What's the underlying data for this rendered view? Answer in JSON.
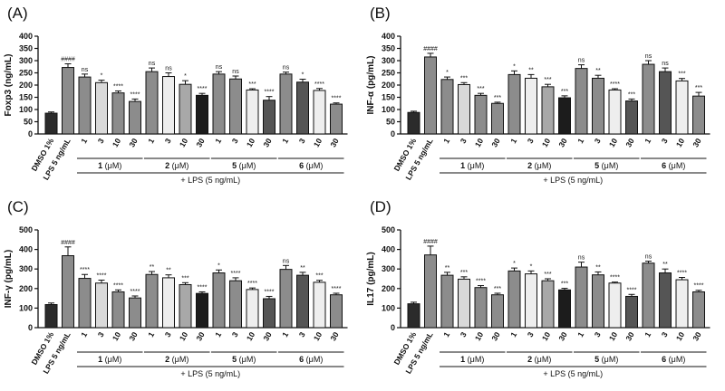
{
  "shared": {
    "categories": [
      "DMSO 1%",
      "LPS 5 ng/mL",
      "1",
      "3",
      "10",
      "30",
      "1",
      "3",
      "10",
      "30",
      "1",
      "3",
      "10",
      "30",
      "1",
      "3",
      "10",
      "30"
    ],
    "groups": [
      {
        "name": "1",
        "unit": "(μM)"
      },
      {
        "name": "2",
        "unit": "(μM)"
      },
      {
        "name": "5",
        "unit": "(μM)"
      },
      {
        "name": "6",
        "unit": "(μM)"
      }
    ],
    "lps_label": "+ LPS (5 ng/mL)",
    "bar_colors": [
      "#2b2b2b",
      "#8c8c8c",
      "#8c8c8c",
      "#d9d9d9",
      "#8c8c8c",
      "#8c8c8c",
      "#8c8c8c",
      "#eeeeee",
      "#a8a8a8",
      "#1c1c1c",
      "#8c8c8c",
      "#8c8c8c",
      "#eeeeee",
      "#555555",
      "#8c8c8c",
      "#555555",
      "#eeeeee",
      "#8c8c8c"
    ]
  },
  "chart_data": [
    {
      "panel": "(A)",
      "type": "bar",
      "ylabel": "Foxp3 (ng/mL)",
      "ylim": [
        0,
        400
      ],
      "yticks": [
        0,
        50,
        100,
        150,
        200,
        250,
        300,
        350,
        400
      ],
      "values": [
        85,
        272,
        233,
        210,
        168,
        133,
        255,
        235,
        203,
        158,
        245,
        225,
        180,
        138,
        245,
        212,
        178,
        122
      ],
      "errors": [
        5,
        15,
        12,
        10,
        8,
        10,
        15,
        15,
        15,
        8,
        10,
        12,
        5,
        15,
        8,
        12,
        8,
        5
      ],
      "significance": [
        "",
        "####",
        "ns",
        "*",
        "****",
        "****",
        "ns",
        "ns",
        "*",
        "****",
        "ns",
        "ns",
        "***",
        "****",
        "ns",
        "*",
        "****",
        "****"
      ]
    },
    {
      "panel": "(B)",
      "type": "bar",
      "ylabel": "INF-α (pg/mL)",
      "ylim": [
        0,
        400
      ],
      "yticks": [
        0,
        50,
        100,
        150,
        200,
        250,
        300,
        350,
        400
      ],
      "values": [
        88,
        315,
        223,
        202,
        158,
        125,
        243,
        228,
        193,
        148,
        268,
        228,
        180,
        135,
        285,
        255,
        217,
        155
      ],
      "errors": [
        5,
        15,
        10,
        8,
        8,
        5,
        15,
        15,
        10,
        8,
        15,
        12,
        5,
        8,
        15,
        15,
        10,
        15
      ],
      "significance": [
        "",
        "####",
        "*",
        "***",
        "***",
        "***",
        "*",
        "**",
        "***",
        "***",
        "ns",
        "**",
        "****",
        "***",
        "ns",
        "ns",
        "***",
        "***"
      ]
    },
    {
      "panel": "(C)",
      "type": "bar",
      "ylabel": "INF-γ (pg/mL)",
      "ylim": [
        0,
        500
      ],
      "yticks": [
        0,
        100,
        200,
        300,
        400,
        500
      ],
      "values": [
        118,
        368,
        252,
        228,
        183,
        152,
        272,
        255,
        220,
        175,
        280,
        240,
        195,
        148,
        298,
        268,
        232,
        168
      ],
      "errors": [
        8,
        45,
        20,
        15,
        10,
        10,
        15,
        15,
        10,
        8,
        15,
        15,
        8,
        12,
        20,
        15,
        10,
        8
      ],
      "significance": [
        "",
        "####",
        "****",
        "****",
        "****",
        "****",
        "**",
        "**",
        "***",
        "****",
        "*",
        "****",
        "****",
        "****",
        "ns",
        "**",
        "***",
        "****"
      ]
    },
    {
      "panel": "(D)",
      "type": "bar",
      "ylabel": "IL17 (pg/mL)",
      "ylim": [
        0,
        500
      ],
      "yticks": [
        0,
        100,
        200,
        300,
        400,
        500
      ],
      "values": [
        122,
        372,
        268,
        248,
        205,
        168,
        290,
        275,
        240,
        193,
        310,
        270,
        228,
        160,
        330,
        280,
        245,
        183
      ],
      "errors": [
        8,
        45,
        15,
        12,
        10,
        8,
        15,
        15,
        10,
        8,
        25,
        15,
        5,
        10,
        10,
        20,
        12,
        8
      ],
      "significance": [
        "",
        "####",
        "**",
        "***",
        "****",
        "***",
        "*",
        "*",
        "***",
        "***",
        "ns",
        "**",
        "****",
        "****",
        "ns",
        "**",
        "****",
        "****"
      ]
    }
  ]
}
